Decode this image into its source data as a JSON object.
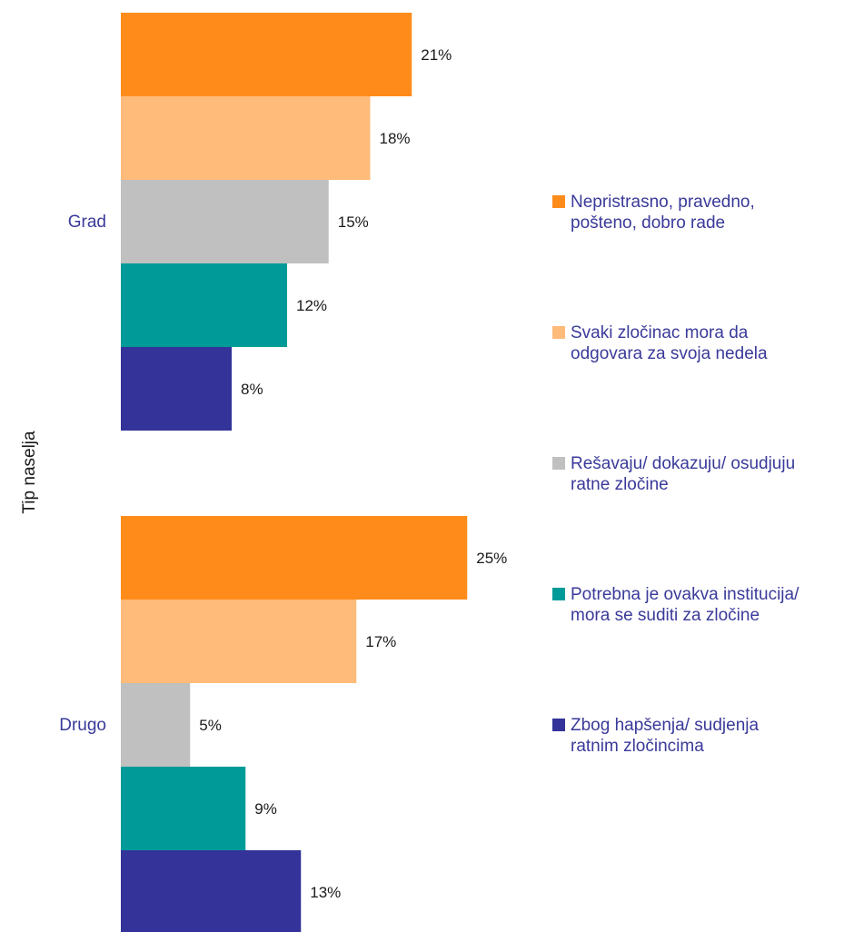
{
  "chart_data": {
    "type": "bar",
    "orientation": "horizontal",
    "ylabel": "Tip naselja",
    "categories": [
      "Grad",
      "Drugo"
    ],
    "series": [
      {
        "name": "Nepristrasno, pravedno, pošteno, dobro rade",
        "color": "#FF8C1A",
        "values": [
          21,
          25
        ],
        "labels": [
          "21%",
          "25%"
        ]
      },
      {
        "name": "Svaki zločinac mora da odgovara za svoja nedela",
        "color": "#FFBB7A",
        "values": [
          18,
          17
        ],
        "labels": [
          "18%",
          "17%"
        ]
      },
      {
        "name": "Rešavaju/ dokazuju/ osudjuju ratne zločine",
        "color": "#C0C0C0",
        "values": [
          15,
          5
        ],
        "labels": [
          "15%",
          "5%"
        ]
      },
      {
        "name": "Potrebna je ovakva institucija/ mora se suditi za zločine",
        "color": "#009B98",
        "values": [
          12,
          9
        ],
        "labels": [
          "12%",
          "9%"
        ]
      },
      {
        "name": "Zbog hapšenja/ sudjenja ratnim zločincima",
        "color": "#333399",
        "values": [
          8,
          13
        ],
        "labels": [
          "8%",
          "13%"
        ]
      }
    ],
    "legend": {
      "position": "right",
      "lines": [
        [
          "Nepristrasno, pravedno,",
          "pošteno, dobro rade"
        ],
        [
          "Svaki zločinac mora da",
          "odgovara za svoja nedela"
        ],
        [
          "Rešavaju/ dokazuju/ osudjuju",
          "ratne zločine"
        ],
        [
          "Potrebna je ovakva institucija/",
          "mora se suditi za zločine"
        ],
        [
          "Zbog hapšenja/ sudjenja",
          "ratnim zločincima"
        ]
      ]
    },
    "grid": false
  }
}
